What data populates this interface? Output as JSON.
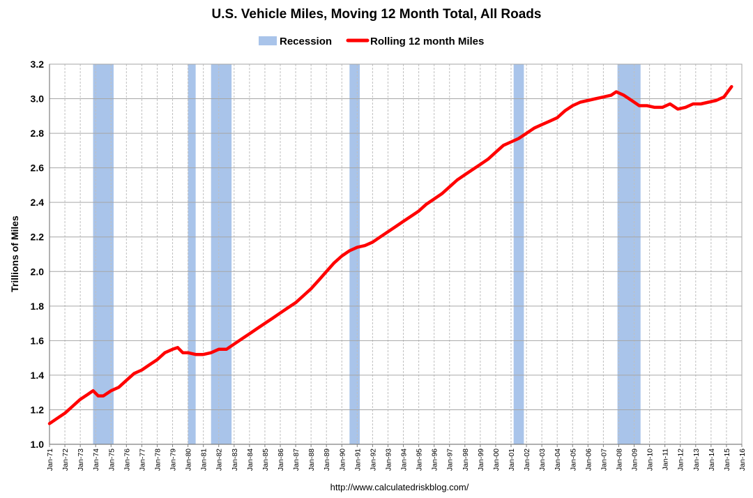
{
  "chart_data": {
    "type": "line",
    "title": "U.S. Vehicle Miles, Moving 12 Month Total, All Roads",
    "ylabel": "Trillions of Miles",
    "xlabel": "",
    "source": "http://www.calculatedriskblog.com/",
    "legend": {
      "placement": "top-center",
      "recession_label": "Recession",
      "series_label": "Rolling 12 month Miles"
    },
    "colors": {
      "line": "#ff0000",
      "recession": "#a9c4ea",
      "grid_h": "#a6a6a6",
      "grid_v": "#bfbfbf"
    },
    "grid": true,
    "ylim": [
      1.0,
      3.2
    ],
    "yticks": [
      "1.0",
      "1.2",
      "1.4",
      "1.6",
      "1.8",
      "2.0",
      "2.2",
      "2.4",
      "2.6",
      "2.8",
      "3.0",
      "3.2"
    ],
    "xlim": [
      "1971-01",
      "2016-01"
    ],
    "xticks": [
      "Jan-71",
      "Jan-72",
      "Jan-73",
      "Jan-74",
      "Jan-75",
      "Jan-76",
      "Jan-77",
      "Jan-78",
      "Jan-79",
      "Jan-80",
      "Jan-81",
      "Jan-82",
      "Jan-83",
      "Jan-84",
      "Jan-85",
      "Jan-86",
      "Jan-87",
      "Jan-88",
      "Jan-89",
      "Jan-90",
      "Jan-91",
      "Jan-92",
      "Jan-93",
      "Jan-94",
      "Jan-95",
      "Jan-96",
      "Jan-97",
      "Jan-98",
      "Jan-99",
      "Jan-00",
      "Jan-01",
      "Jan-02",
      "Jan-03",
      "Jan-04",
      "Jan-05",
      "Jan-06",
      "Jan-07",
      "Jan-08",
      "Jan-09",
      "Jan-10",
      "Jan-11",
      "Jan-12",
      "Jan-13",
      "Jan-14",
      "Jan-15",
      "Jan-16"
    ],
    "recessions": [
      {
        "start": "1973-11",
        "end": "1975-03"
      },
      {
        "start": "1980-01",
        "end": "1980-07"
      },
      {
        "start": "1981-07",
        "end": "1982-11"
      },
      {
        "start": "1990-07",
        "end": "1991-03"
      },
      {
        "start": "2001-03",
        "end": "2001-11"
      },
      {
        "start": "2007-12",
        "end": "2009-06"
      }
    ],
    "series": [
      {
        "name": "Rolling 12 month Miles",
        "x": [
          "1971-01",
          "1971-07",
          "1972-01",
          "1972-07",
          "1973-01",
          "1973-07",
          "1973-11",
          "1974-03",
          "1974-07",
          "1975-01",
          "1975-07",
          "1976-01",
          "1976-07",
          "1977-01",
          "1977-07",
          "1978-01",
          "1978-07",
          "1979-01",
          "1979-05",
          "1979-09",
          "1980-01",
          "1980-07",
          "1981-01",
          "1981-07",
          "1982-01",
          "1982-07",
          "1983-01",
          "1983-07",
          "1984-01",
          "1984-07",
          "1985-01",
          "1985-07",
          "1986-01",
          "1986-07",
          "1987-01",
          "1987-07",
          "1988-01",
          "1988-07",
          "1989-01",
          "1989-07",
          "1990-01",
          "1990-07",
          "1991-01",
          "1991-07",
          "1992-01",
          "1992-07",
          "1993-01",
          "1993-07",
          "1994-01",
          "1994-07",
          "1995-01",
          "1995-07",
          "1996-01",
          "1996-07",
          "1997-01",
          "1997-07",
          "1998-01",
          "1998-07",
          "1999-01",
          "1999-07",
          "2000-01",
          "2000-07",
          "2001-01",
          "2001-07",
          "2002-01",
          "2002-07",
          "2003-01",
          "2003-07",
          "2004-01",
          "2004-07",
          "2005-01",
          "2005-07",
          "2006-01",
          "2006-07",
          "2007-01",
          "2007-07",
          "2007-11",
          "2008-05",
          "2008-11",
          "2009-05",
          "2009-11",
          "2010-05",
          "2010-11",
          "2011-05",
          "2011-11",
          "2012-05",
          "2012-11",
          "2013-05",
          "2013-11",
          "2014-05",
          "2014-11",
          "2015-05"
        ],
        "values": [
          1.12,
          1.15,
          1.18,
          1.22,
          1.26,
          1.29,
          1.31,
          1.28,
          1.28,
          1.31,
          1.33,
          1.37,
          1.41,
          1.43,
          1.46,
          1.49,
          1.53,
          1.55,
          1.56,
          1.53,
          1.53,
          1.52,
          1.52,
          1.53,
          1.55,
          1.55,
          1.58,
          1.61,
          1.64,
          1.67,
          1.7,
          1.73,
          1.76,
          1.79,
          1.82,
          1.86,
          1.9,
          1.95,
          2.0,
          2.05,
          2.09,
          2.12,
          2.14,
          2.15,
          2.17,
          2.2,
          2.23,
          2.26,
          2.29,
          2.32,
          2.35,
          2.39,
          2.42,
          2.45,
          2.49,
          2.53,
          2.56,
          2.59,
          2.62,
          2.65,
          2.69,
          2.73,
          2.75,
          2.77,
          2.8,
          2.83,
          2.85,
          2.87,
          2.89,
          2.93,
          2.96,
          2.98,
          2.99,
          3.0,
          3.01,
          3.02,
          3.04,
          3.02,
          2.99,
          2.96,
          2.96,
          2.95,
          2.95,
          2.97,
          2.94,
          2.95,
          2.97,
          2.97,
          2.98,
          2.99,
          3.01,
          3.07
        ]
      }
    ]
  }
}
